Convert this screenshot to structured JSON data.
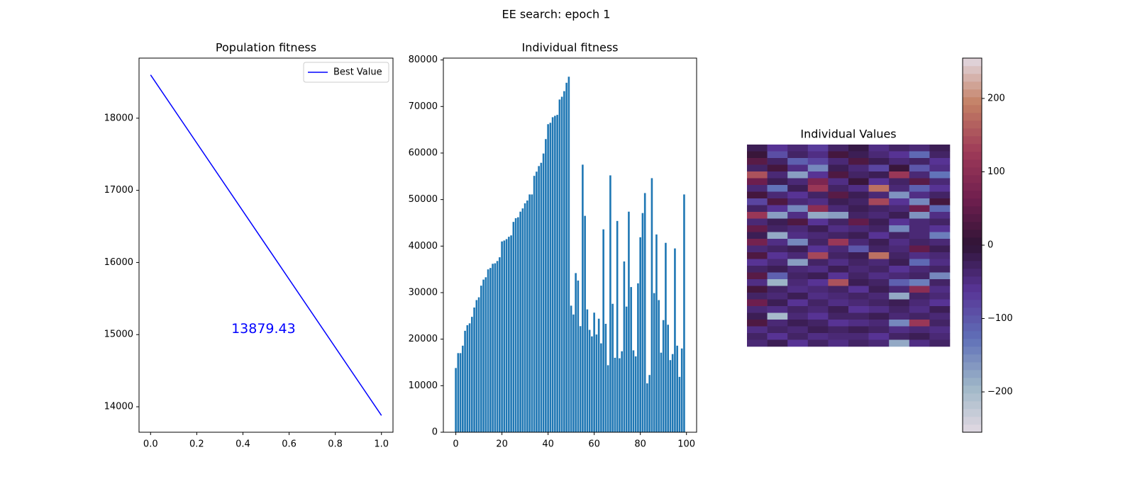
{
  "title": "EE search: epoch 1",
  "chart_data": [
    {
      "type": "line",
      "title": "Population fitness",
      "x": [
        0,
        1
      ],
      "series": [
        {
          "name": "Best Value",
          "color": "#0000ff",
          "values": [
            18600,
            13879.43
          ]
        }
      ],
      "annotations": [
        {
          "text": "13879.43",
          "color": "#0000ff"
        }
      ],
      "legend": "upper right",
      "xlim": [
        -0.05,
        1.05
      ],
      "xticks": [
        {
          "value": 0,
          "label": "0.0"
        },
        {
          "value": 0.2,
          "label": "0.2"
        },
        {
          "value": 0.4,
          "label": "0.4"
        },
        {
          "value": 0.6,
          "label": "0.6"
        },
        {
          "value": 0.8,
          "label": "0.8"
        },
        {
          "value": 1,
          "label": "1.0"
        }
      ],
      "ylim": [
        13647,
        18833
      ],
      "yticks": [
        14000,
        15000,
        16000,
        17000,
        18000
      ]
    },
    {
      "type": "bar",
      "title": "Individual fitness",
      "color": "#1f77b4",
      "x": [
        0,
        1,
        2,
        3,
        4,
        5,
        6,
        7,
        8,
        9,
        10,
        11,
        12,
        13,
        14,
        15,
        16,
        17,
        18,
        19,
        20,
        21,
        22,
        23,
        24,
        25,
        26,
        27,
        28,
        29,
        30,
        31,
        32,
        33,
        34,
        35,
        36,
        37,
        38,
        39,
        40,
        41,
        42,
        43,
        44,
        45,
        46,
        47,
        48,
        49,
        50,
        51,
        52,
        53,
        54,
        55,
        56,
        57,
        58,
        59,
        60,
        61,
        62,
        63,
        64,
        65,
        66,
        67,
        68,
        69,
        70,
        71,
        72,
        73,
        74,
        75,
        76,
        77,
        78,
        79,
        80,
        81,
        82,
        83,
        84,
        85,
        86,
        87,
        88,
        89,
        90,
        91,
        92,
        93,
        94,
        95,
        96,
        97,
        98,
        99
      ],
      "values": [
        13800,
        17000,
        17000,
        18600,
        21800,
        23000,
        23400,
        24800,
        26800,
        28400,
        29000,
        31500,
        32800,
        33300,
        35000,
        35300,
        36200,
        36300,
        36800,
        37600,
        41000,
        41200,
        41500,
        42000,
        42300,
        45200,
        46000,
        46200,
        47400,
        48100,
        49200,
        49800,
        51100,
        51100,
        55100,
        56000,
        57200,
        57900,
        59900,
        63000,
        66200,
        66500,
        67700,
        68000,
        68200,
        71500,
        72100,
        73300,
        75100,
        76400,
        27200,
        25300,
        34200,
        32600,
        22800,
        57500,
        46500,
        26400,
        22000,
        20600,
        25700,
        21000,
        24400,
        19100,
        43600,
        23300,
        14400,
        55200,
        27600,
        16000,
        45400,
        15900,
        17400,
        36700,
        27000,
        47400,
        31200,
        17600,
        16300,
        32000,
        41900,
        47100,
        51400,
        10500,
        12300,
        54600,
        29900,
        42500,
        28400,
        17100,
        24100,
        40700,
        23100,
        15500,
        16800,
        39500,
        18600,
        11900,
        18000,
        51100
      ],
      "xlim": [
        -5.4,
        104.4
      ],
      "xticks": [
        0,
        20,
        40,
        60,
        80,
        100
      ],
      "ylim": [
        0,
        80400
      ],
      "yticks": [
        0,
        10000,
        20000,
        30000,
        40000,
        50000,
        60000,
        70000,
        80000
      ]
    },
    {
      "type": "heatmap",
      "title": "Individual Values",
      "colormap": "twilight_shifted",
      "zlim": [
        -255,
        255
      ],
      "zticks": [
        {
          "value": -200,
          "label": "−200"
        },
        {
          "value": -100,
          "label": "−100"
        },
        0,
        100,
        200
      ],
      "values": [
        [
          -20,
          -60,
          -40,
          -70,
          -30,
          -10,
          -50,
          -30,
          -40,
          -20
        ],
        [
          10,
          -90,
          -30,
          -50,
          20,
          -20,
          -40,
          -60,
          -120,
          -30
        ],
        [
          40,
          -30,
          -110,
          -80,
          -40,
          30,
          -20,
          -40,
          -30,
          -60
        ],
        [
          -30,
          20,
          -50,
          -150,
          -20,
          -40,
          -80,
          10,
          -100,
          -50
        ],
        [
          150,
          -40,
          -170,
          -60,
          30,
          -30,
          -20,
          120,
          -40,
          -130
        ],
        [
          60,
          -20,
          -40,
          80,
          -50,
          10,
          -60,
          -30,
          40,
          -40
        ],
        [
          -40,
          -130,
          -20,
          120,
          -30,
          -50,
          180,
          -40,
          -110,
          -60
        ],
        [
          20,
          -40,
          -60,
          -30,
          40,
          -20,
          -40,
          -160,
          -50,
          -30
        ],
        [
          -80,
          30,
          -40,
          -50,
          -20,
          -30,
          140,
          -60,
          -150,
          20
        ],
        [
          -30,
          -60,
          -150,
          100,
          -40,
          -20,
          -30,
          -40,
          60,
          -120
        ],
        [
          120,
          -170,
          -50,
          -180,
          -170,
          -30,
          -40,
          -20,
          -160,
          -50
        ],
        [
          -40,
          -20,
          30,
          -60,
          -30,
          50,
          -20,
          -60,
          -40,
          -30
        ],
        [
          50,
          -30,
          -40,
          -20,
          -50,
          -40,
          -30,
          -150,
          -40,
          -60
        ],
        [
          -20,
          -180,
          -50,
          -40,
          -30,
          -20,
          -60,
          -30,
          -40,
          -140
        ],
        [
          70,
          -50,
          -150,
          -30,
          120,
          -40,
          -20,
          -50,
          -30,
          -40
        ],
        [
          -40,
          -30,
          -20,
          -60,
          -40,
          -100,
          -30,
          -40,
          50,
          -20
        ],
        [
          30,
          -60,
          -40,
          140,
          -30,
          -20,
          180,
          -30,
          -50,
          -40
        ],
        [
          -60,
          -40,
          -170,
          -30,
          -50,
          -30,
          -40,
          -20,
          -120,
          -50
        ],
        [
          -30,
          -20,
          -40,
          -50,
          -20,
          -40,
          -30,
          -60,
          -40,
          -30
        ],
        [
          40,
          -110,
          -30,
          -20,
          -60,
          -30,
          -50,
          -40,
          -30,
          -150
        ],
        [
          -50,
          -190,
          -40,
          -60,
          150,
          -20,
          -30,
          -110,
          -140,
          -30
        ],
        [
          20,
          -30,
          -50,
          -40,
          -30,
          -60,
          -20,
          -40,
          100,
          -50
        ],
        [
          -30,
          -40,
          -20,
          -50,
          -40,
          -30,
          -40,
          -180,
          -30,
          -40
        ],
        [
          60,
          -20,
          -60,
          -30,
          -50,
          -40,
          -30,
          -20,
          -40,
          -60
        ],
        [
          -40,
          -50,
          -30,
          -40,
          -20,
          -60,
          -50,
          -30,
          -50,
          -20
        ],
        [
          -20,
          -200,
          -40,
          -60,
          -30,
          -30,
          -20,
          -40,
          -30,
          -40
        ],
        [
          30,
          -40,
          -20,
          -30,
          -60,
          -50,
          -40,
          -150,
          120,
          -30
        ],
        [
          -50,
          -30,
          -40,
          -20,
          -30,
          -20,
          -30,
          -50,
          -40,
          -50
        ],
        [
          -30,
          -60,
          -30,
          -50,
          -40,
          -40,
          -60,
          -30,
          -20,
          -40
        ],
        [
          -40,
          -20,
          -60,
          -30,
          -50,
          -30,
          -40,
          -180,
          -50,
          -30
        ]
      ]
    }
  ]
}
